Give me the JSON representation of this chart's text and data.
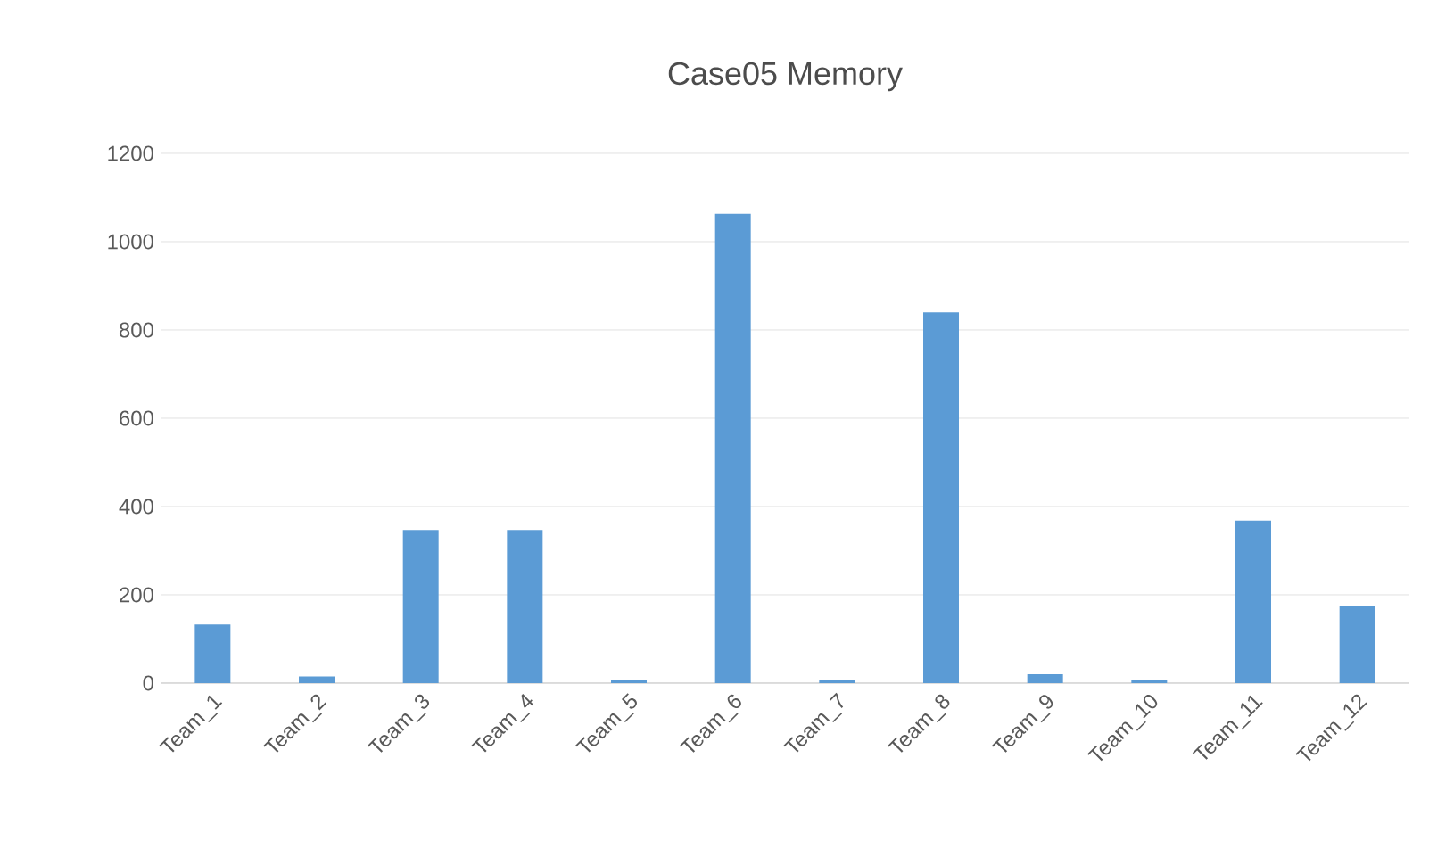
{
  "chart_data": {
    "type": "bar",
    "title": "Case05 Memory",
    "categories": [
      "Team_1",
      "Team_2",
      "Team_3",
      "Team_4",
      "Team_5",
      "Team_6",
      "Team_7",
      "Team_8",
      "Team_9",
      "Team_10",
      "Team_11",
      "Team_12"
    ],
    "values": [
      133,
      15,
      347,
      347,
      8,
      1063,
      8,
      840,
      20,
      8,
      368,
      174
    ],
    "color": "#5b9bd5",
    "ylim": [
      0,
      1200
    ],
    "yticks": [
      0,
      200,
      400,
      600,
      800,
      1000,
      1200
    ],
    "grid": "y"
  }
}
